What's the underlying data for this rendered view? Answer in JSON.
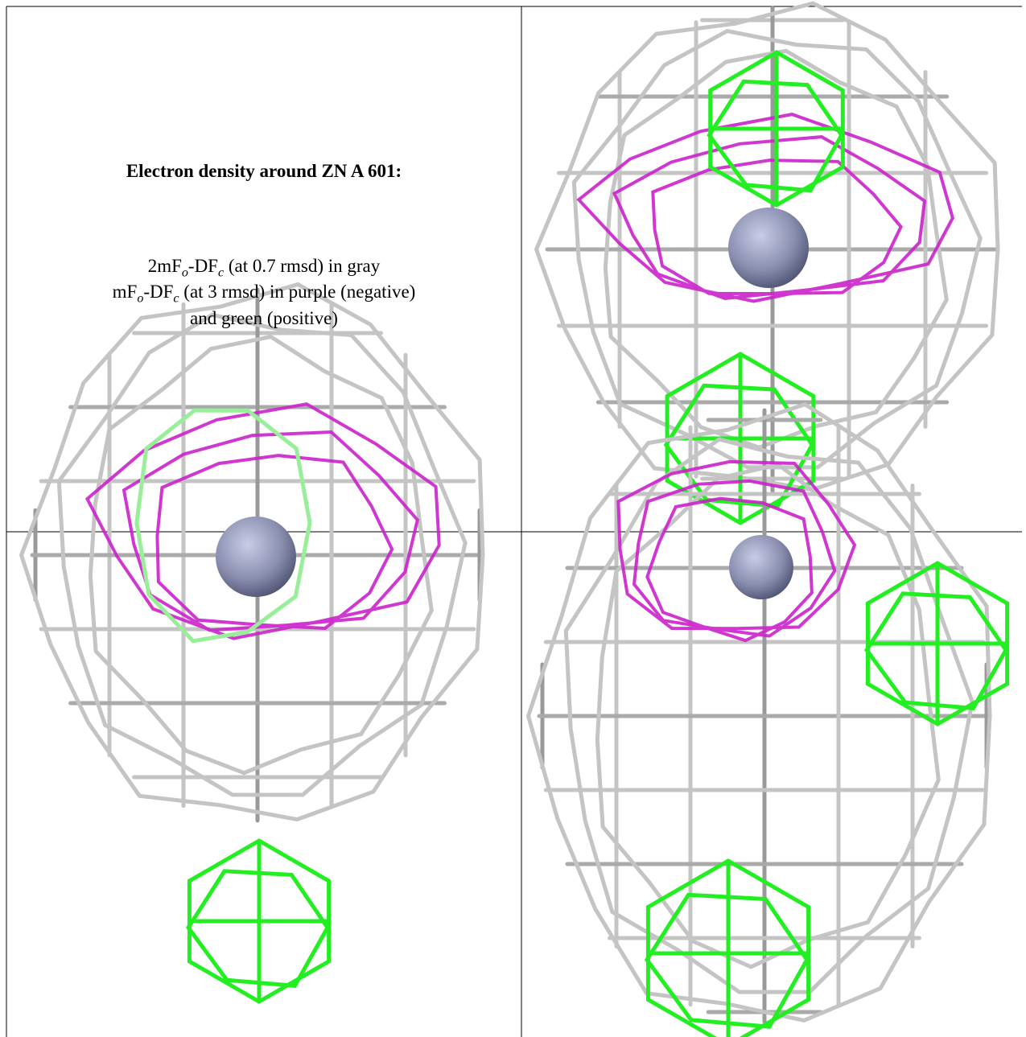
{
  "text": {
    "title": "Electron density around ZN A 601:",
    "line1": [
      "2mF",
      "o",
      "-DF",
      "c",
      " (at 0.7 rmsd) in gray"
    ],
    "line2": [
      "mF",
      "o",
      "-DF",
      "c",
      " (at 3 rmsd) in purple (negative)"
    ],
    "line3": "and green (positive)"
  }
}
